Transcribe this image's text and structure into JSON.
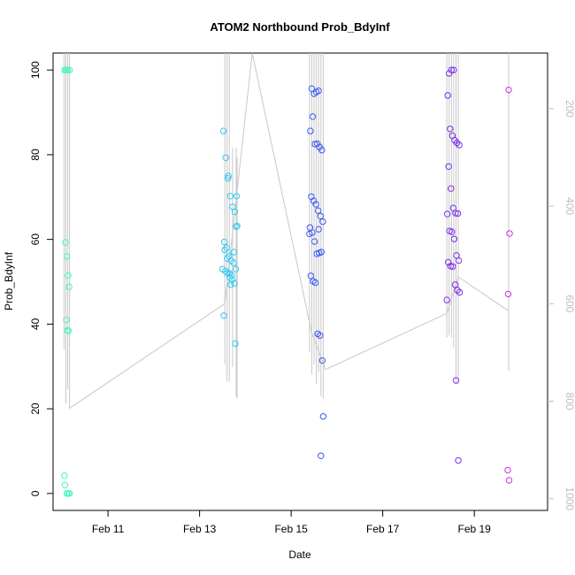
{
  "chart_data": {
    "type": "scatter",
    "title": "ATOM2 Northbound Prob_BdyInf",
    "xlabel": "Date",
    "ylabel": "Prob_BdyInf",
    "xlim": [
      9.8,
      20.6
    ],
    "ylim": [
      -4,
      104
    ],
    "x_ticks": [
      11,
      13,
      15,
      17,
      19
    ],
    "x_tick_labels": [
      "Feb 11",
      "Feb 13",
      "Feb 15",
      "Feb 17",
      "Feb 19"
    ],
    "y_ticks": [
      0,
      20,
      40,
      60,
      80,
      100
    ],
    "y_tick_labels": [
      "0",
      "20",
      "40",
      "60",
      "80",
      "100"
    ],
    "y2_ticks": [
      200,
      400,
      600,
      800,
      1000
    ],
    "y2_tick_labels": [
      "200",
      "400",
      "600",
      "800",
      "1000"
    ],
    "y2_lim": [
      1024,
      86
    ],
    "y2_color": "#bdbdbd",
    "line_color": "#c8c8c8",
    "grid": false,
    "secondary_line": {
      "x": [
        10.15,
        13.55,
        14.15,
        15.45,
        15.75,
        18.4,
        18.65,
        19.75,
        19.75
      ],
      "y2": [
        815,
        600,
        86,
        660,
        735,
        620,
        545,
        615,
        738
      ]
    },
    "secondary_spikes": [
      {
        "x": 10.04,
        "top": 86,
        "bottom": 695
      },
      {
        "x": 10.08,
        "top": 86,
        "bottom": 805
      },
      {
        "x": 10.12,
        "top": 86,
        "bottom": 775
      },
      {
        "x": 10.16,
        "top": 86,
        "bottom": 815
      },
      {
        "x": 13.55,
        "top": 86,
        "bottom": 725
      },
      {
        "x": 13.6,
        "top": 86,
        "bottom": 760
      },
      {
        "x": 13.65,
        "top": 86,
        "bottom": 760
      },
      {
        "x": 13.72,
        "top": 280,
        "bottom": 730
      },
      {
        "x": 13.8,
        "top": 280,
        "bottom": 790
      },
      {
        "x": 13.82,
        "top": 300,
        "bottom": 795
      },
      {
        "x": 15.4,
        "top": 86,
        "bottom": 700
      },
      {
        "x": 15.45,
        "top": 86,
        "bottom": 745
      },
      {
        "x": 15.5,
        "top": 86,
        "bottom": 725
      },
      {
        "x": 15.55,
        "top": 86,
        "bottom": 765
      },
      {
        "x": 15.6,
        "top": 86,
        "bottom": 740
      },
      {
        "x": 15.65,
        "top": 86,
        "bottom": 790
      },
      {
        "x": 15.7,
        "top": 86,
        "bottom": 795
      },
      {
        "x": 18.4,
        "top": 86,
        "bottom": 670
      },
      {
        "x": 18.45,
        "top": 86,
        "bottom": 665
      },
      {
        "x": 18.5,
        "top": 86,
        "bottom": 670
      },
      {
        "x": 18.55,
        "top": 86,
        "bottom": 690
      },
      {
        "x": 18.6,
        "top": 86,
        "bottom": 765
      },
      {
        "x": 18.65,
        "top": 86,
        "bottom": 765
      },
      {
        "x": 19.75,
        "top": 86,
        "bottom": 738
      }
    ],
    "series": [
      {
        "color": "#3dfac0",
        "x": [
          10.05,
          10.08,
          10.12,
          10.16,
          10.07,
          10.1,
          10.13,
          10.15,
          10.09,
          10.11,
          10.14,
          10.05,
          10.06,
          10.1,
          10.13,
          10.16
        ],
        "y": [
          100,
          100,
          100,
          100,
          59.3,
          56,
          51.5,
          48.8,
          41,
          38.5,
          38.4,
          4.2,
          2,
          0,
          0,
          0
        ]
      },
      {
        "color": "#33c7f0",
        "x": [
          13.5,
          13.55,
          13.6,
          13.65,
          13.7,
          13.75,
          13.8,
          13.52,
          13.57,
          13.62,
          13.67,
          13.72,
          13.77,
          13.82,
          13.54,
          13.59,
          13.64,
          13.69,
          13.74,
          13.79,
          13.56,
          13.61,
          13.66,
          13.71,
          13.76,
          13.81,
          13.53,
          13.63,
          13.68,
          13.78
        ],
        "y": [
          53,
          57.5,
          55.5,
          52,
          51.5,
          57,
          63,
          85.6,
          79.3,
          74.4,
          70.2,
          67.7,
          66.5,
          63.2,
          59.4,
          58,
          56,
          55,
          54.5,
          53,
          52.5,
          52,
          51,
          50.5,
          49.6,
          70.2,
          42,
          75,
          49.3,
          35.4
        ],
        "point_y": [
          53,
          57.5,
          55.5,
          52,
          51.5,
          57,
          63,
          85.6,
          79.3,
          74.4,
          70.2,
          67.7,
          66.5,
          63.2,
          59.4,
          58,
          56,
          55,
          54.5,
          53,
          52.5,
          52,
          51,
          50.5,
          49.6,
          70.2,
          42,
          75,
          49.3,
          35.4
        ]
      },
      {
        "color": "#3b5af2",
        "x": [
          15.45,
          15.5,
          15.55,
          15.6,
          15.42,
          15.47,
          15.52,
          15.57,
          15.62,
          15.67,
          15.44,
          15.49,
          15.54,
          15.59,
          15.64,
          15.69,
          15.41,
          15.46,
          15.51,
          15.56,
          15.61,
          15.66,
          15.43,
          15.48,
          15.53,
          15.58,
          15.63,
          15.68,
          15.6,
          15.7,
          15.65,
          15.4
        ],
        "y": [
          95.6,
          94.4,
          94.8,
          95.1,
          85.6,
          89,
          82.5,
          82.6,
          81.8,
          81.1,
          70.1,
          69.1,
          68.3,
          66.8,
          65.5,
          64.2,
          62.8,
          61.6,
          59.5,
          56.6,
          56.8,
          57,
          51.4,
          50.1,
          49.8,
          37.7,
          37.3,
          31.4,
          62.4,
          18.2,
          8.9,
          61.3
        ]
      },
      {
        "color": "#7b2fea",
        "x": [
          18.45,
          18.5,
          18.55,
          18.42,
          18.47,
          18.52,
          18.57,
          18.62,
          18.67,
          18.44,
          18.49,
          18.54,
          18.59,
          18.64,
          18.41,
          18.46,
          18.51,
          18.56,
          18.61,
          18.66,
          18.43,
          18.48,
          18.53,
          18.58,
          18.63,
          18.68,
          18.4,
          18.6,
          18.65
        ],
        "y": [
          99.2,
          100,
          100,
          94,
          86.1,
          84.5,
          83.4,
          82.8,
          82.3,
          77.2,
          72,
          67.4,
          66.2,
          66.1,
          66,
          62,
          61.8,
          60.1,
          56.2,
          55,
          54.6,
          53.7,
          53.6,
          49.3,
          48,
          47.5,
          45.7,
          26.7,
          7.8
        ]
      },
      {
        "color": "#cc33ee",
        "x": [
          19.75,
          19.77,
          19.74,
          19.73,
          19.76
        ],
        "y": [
          95.3,
          61.4,
          47.1,
          5.5,
          3.1
        ]
      }
    ]
  }
}
